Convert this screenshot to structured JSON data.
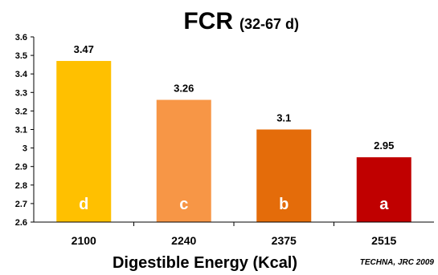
{
  "chart_data": {
    "type": "bar",
    "title": "FCR",
    "subtitle": "(32-67 d)",
    "xlabel": "Digestible Energy (Kcal)",
    "ylabel": "",
    "categories": [
      "2100",
      "2240",
      "2375",
      "2515"
    ],
    "values": [
      3.47,
      3.26,
      3.1,
      2.95
    ],
    "value_labels": [
      "3.47",
      "3.26",
      "3.1",
      "2.95"
    ],
    "letters": [
      "d",
      "c",
      "b",
      "a"
    ],
    "colors": [
      "#FFC000",
      "#F79646",
      "#E46C0A",
      "#C00000"
    ],
    "ylim": [
      2.6,
      3.6
    ],
    "yticks": [
      2.6,
      2.7,
      2.8,
      2.9,
      3,
      3.1,
      3.2,
      3.3,
      3.4,
      3.5,
      3.6
    ],
    "ytick_labels": [
      "2.6",
      "2.7",
      "2.8",
      "2.9",
      "3",
      "3.1",
      "3.2",
      "3.3",
      "3.4",
      "3.5",
      "3.6"
    ],
    "grid": false,
    "legend": "none",
    "source": "TECHNA, JRC 2009"
  }
}
